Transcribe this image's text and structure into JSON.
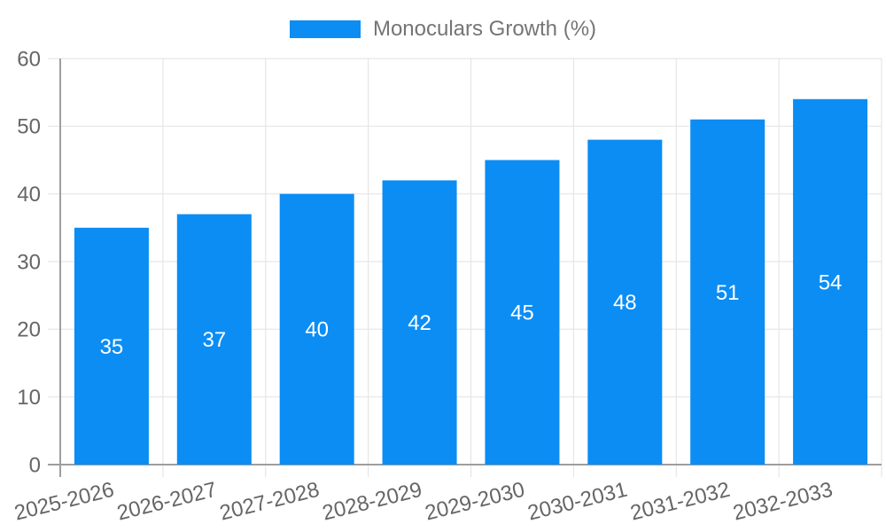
{
  "legend": {
    "label": "Monoculars Growth (%)"
  },
  "colors": {
    "bar": "#0b8df4",
    "grid": "#e6e6e6",
    "axis": "#9e9e9e",
    "tick_text": "#666666",
    "legend_text": "#757575",
    "bar_label_text": "#ffffff",
    "background": "#ffffff"
  },
  "chart_data": {
    "type": "bar",
    "categories": [
      "2025-2026",
      "2026-2027",
      "2027-2028",
      "2028-2029",
      "2029-2030",
      "2030-2031",
      "2031-2032",
      "2032-2033"
    ],
    "series": [
      {
        "name": "Monoculars Growth (%)",
        "values": [
          35,
          37,
          40,
          42,
          45,
          48,
          51,
          54
        ]
      }
    ],
    "title": "",
    "xlabel": "",
    "ylabel": "",
    "ylim": [
      0,
      60
    ],
    "yticks": [
      0,
      10,
      20,
      30,
      40,
      50,
      60
    ],
    "grid": true,
    "legend_position": "top-center",
    "value_labels": "inside-center",
    "x_tick_rotation_deg": -14
  }
}
